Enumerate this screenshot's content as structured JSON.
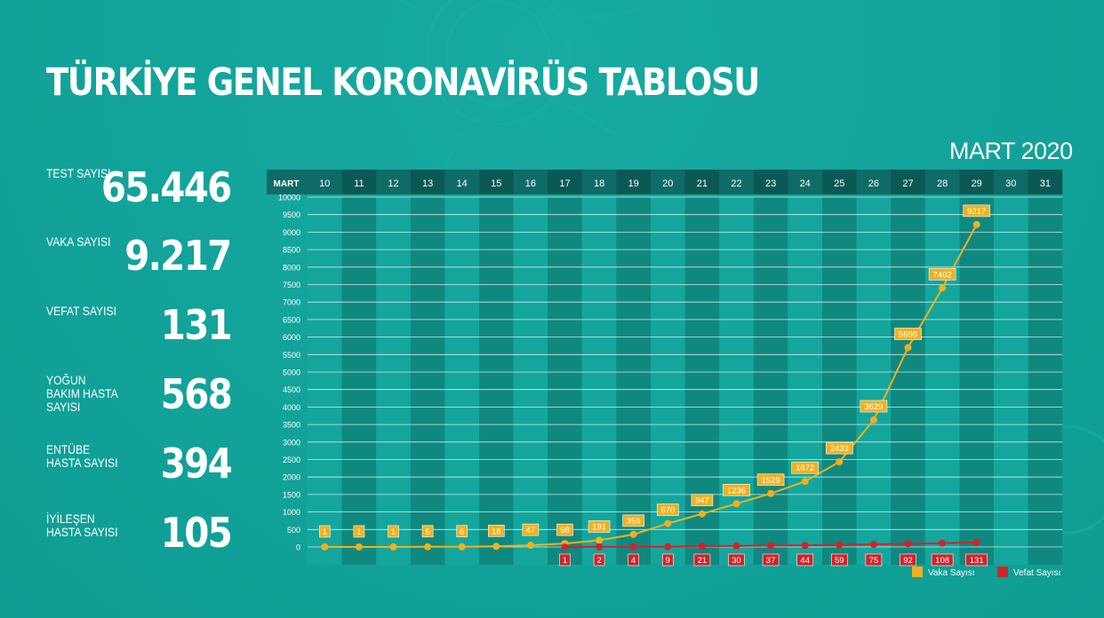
{
  "title": "TÜRKİYE GENEL KORONAVİRÜS TABLOSU",
  "month_label": "MART 2020",
  "stats": [
    {
      "label": "TEST SAYISI",
      "value": "65.446"
    },
    {
      "label": "VAKA SAYISI",
      "value": "9.217"
    },
    {
      "label": "VEFAT SAYISI",
      "value": "131"
    },
    {
      "label": "YOĞUN BAKIM HASTA SAYISI",
      "value": "568"
    },
    {
      "label": "ENTÜBE HASTA SAYISI",
      "value": "394"
    },
    {
      "label": "İYİLEŞEN HASTA SAYISI",
      "value": "105"
    }
  ],
  "colors": {
    "background": "#12a39a",
    "vaka": "#f2b01e",
    "vefat": "#d1232a",
    "header": "#0f6b67",
    "band_light": "#14a69d",
    "band_dark": "#0f8880"
  },
  "chart_data": {
    "type": "line",
    "axis_corner_label": "MART",
    "categories": [
      "10",
      "11",
      "12",
      "13",
      "14",
      "15",
      "16",
      "17",
      "18",
      "19",
      "20",
      "21",
      "22",
      "23",
      "24",
      "25",
      "26",
      "27",
      "28",
      "29",
      "30",
      "31"
    ],
    "ylim": [
      0,
      10000
    ],
    "yticks": [
      0,
      500,
      1000,
      1500,
      2000,
      2500,
      3000,
      3500,
      4000,
      4500,
      5000,
      5500,
      6000,
      6500,
      7000,
      7500,
      8000,
      8500,
      9000,
      9500,
      10000
    ],
    "grid": true,
    "legend_position": "bottom-right",
    "series": [
      {
        "name": "Vaka Sayısı",
        "color": "#f2b01e",
        "values": [
          1,
          1,
          1,
          5,
          6,
          18,
          47,
          98,
          191,
          359,
          670,
          947,
          1236,
          1529,
          1872,
          2433,
          3629,
          5698,
          7402,
          9217,
          null,
          null
        ]
      },
      {
        "name": "Vefat Sayısı",
        "color": "#d1232a",
        "values": [
          null,
          null,
          null,
          null,
          null,
          null,
          null,
          1,
          2,
          4,
          9,
          21,
          30,
          37,
          44,
          59,
          75,
          92,
          108,
          131,
          null,
          null
        ]
      }
    ]
  }
}
